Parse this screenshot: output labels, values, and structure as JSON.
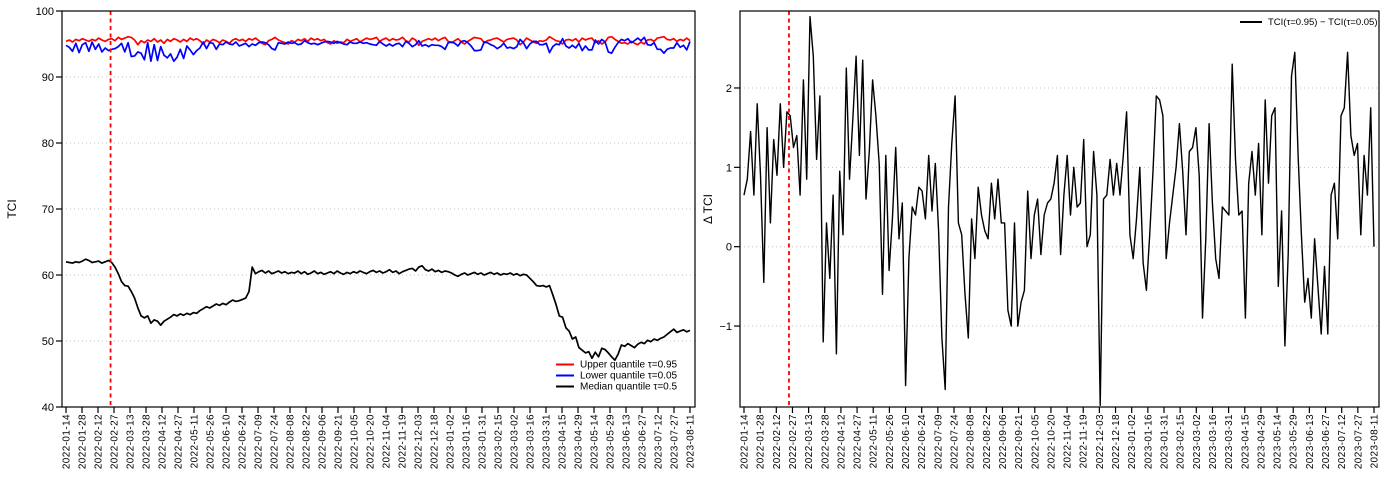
{
  "figure": {
    "background": "#ffffff",
    "event_line_color": "#ff0000"
  },
  "chart_data": [
    {
      "type": "line",
      "name": "tci-quantile-levels",
      "ylabel": "TCI",
      "ylim": [
        40,
        100
      ],
      "yticks": [
        40,
        50,
        60,
        70,
        80,
        90,
        100
      ],
      "grid": "dotted-horizontal",
      "x_tick_labels": [
        "2022-01-14",
        "2022-01-28",
        "2022-02-12",
        "2022-02-27",
        "2022-03-13",
        "2022-03-28",
        "2022-04-12",
        "2022-04-27",
        "2022-05-11",
        "2022-05-26",
        "2022-06-10",
        "2022-06-24",
        "2022-07-09",
        "2022-07-24",
        "2022-08-08",
        "2022-08-22",
        "2022-09-06",
        "2022-09-21",
        "2022-10-05",
        "2022-10-20",
        "2022-11-04",
        "2022-11-19",
        "2022-12-03",
        "2022-12-18",
        "2023-01-02",
        "2023-01-16",
        "2023-01-31",
        "2023-02-15",
        "2023-03-02",
        "2023-03-16",
        "2023-03-31",
        "2023-04-15",
        "2023-04-29",
        "2023-05-14",
        "2023-05-29",
        "2023-06-13",
        "2023-06-27",
        "2023-07-12",
        "2023-07-27",
        "2023-08-11"
      ],
      "event_line": {
        "x_fraction": 0.0714,
        "color": "#ff0000",
        "style": "dashed"
      },
      "legend_position": "bottom-right",
      "legend": [
        {
          "label": "Upper quantile τ=0.95",
          "color": "#ff0000"
        },
        {
          "label": "Lower quantile τ=0.05",
          "color": "#0000ff"
        },
        {
          "label": "Median quantile τ=0.5",
          "color": "#000000"
        }
      ],
      "series": [
        {
          "name": "upper-quantile",
          "color": "#ff0000",
          "width": 1.7,
          "values": [
            95.4,
            95.6,
            95.3,
            95.7,
            95.5,
            95.8,
            95.6,
            95.4,
            95.7,
            95.5,
            95.9,
            95.6,
            95.4,
            95.7,
            95.8,
            95.5,
            96.0,
            95.7,
            95.9,
            96.1,
            96.0,
            95.6,
            94.9,
            95.5,
            95.2,
            95.6,
            95.4,
            95.8,
            95.3,
            95.6,
            95.1,
            95.7,
            95.4,
            95.8,
            95.6,
            95.3,
            95.7,
            95.4,
            95.9,
            95.6,
            95.8,
            95.5,
            95.0,
            95.6,
            95.3,
            95.7,
            95.5,
            95.2,
            95.6,
            95.4,
            95.1,
            95.6,
            95.8,
            95.5,
            95.7,
            95.4,
            95.8,
            95.6,
            95.9,
            95.5,
            95.1,
            94.9,
            95.5,
            95.7,
            96.0,
            95.6,
            95.4,
            95.2,
            95.0,
            95.5,
            95.3,
            95.7,
            95.5,
            95.8,
            95.4,
            95.9,
            95.6,
            95.8,
            95.5,
            95.7,
            95.2,
            95.0,
            95.5,
            95.1,
            95.3,
            95.2,
            95.7,
            95.4,
            95.6,
            95.8,
            95.3,
            95.6,
            95.9,
            95.7,
            95.8,
            96.0,
            95.4,
            95.7,
            95.9,
            95.5,
            95.8,
            95.6,
            95.7,
            96.0,
            95.5,
            95.3,
            95.9,
            95.6,
            94.8,
            95.4,
            95.6,
            95.8,
            95.6,
            95.9,
            95.5,
            95.8,
            96.0,
            95.4,
            95.2,
            95.5,
            95.8,
            95.3,
            95.0,
            95.4,
            95.7,
            96.0,
            95.9,
            95.8,
            95.2,
            95.5,
            95.6,
            95.8,
            95.9,
            95.6,
            95.3,
            95.7,
            95.8,
            95.9,
            95.6,
            94.9,
            95.3,
            95.9,
            95.6,
            95.3,
            95.1,
            95.5,
            95.4,
            95.6,
            96.1,
            95.8,
            95.5,
            95.4,
            95.0,
            95.6,
            95.7,
            95.5,
            95.8,
            95.3,
            95.9,
            95.6,
            95.8,
            95.9,
            95.2,
            95.5,
            95.0,
            95.3,
            96.0,
            96.1,
            95.7,
            95.4,
            95.1,
            95.2,
            95.0,
            95.4,
            95.1,
            94.9,
            95.3,
            95.0,
            95.6,
            95.7,
            95.4,
            95.9,
            96.0,
            96.1,
            95.7,
            95.6,
            95.8,
            95.4,
            95.7,
            95.5,
            95.9,
            95.5
          ]
        },
        {
          "name": "lower-quantile",
          "color": "#0000ff",
          "width": 1.7,
          "values": [
            94.8,
            94.5,
            93.9,
            95.1,
            93.7,
            94.9,
            95.2,
            93.9,
            95.3,
            94.2,
            95.0,
            93.8,
            94.4,
            94.0,
            94.2,
            94.3,
            94.6,
            95.1,
            93.8,
            95.2,
            93.1,
            93.2,
            93.8,
            93.6,
            92.6,
            95.2,
            92.4,
            94.9,
            92.5,
            94.6,
            93.3,
            92.9,
            93.5,
            92.4,
            93.0,
            94.2,
            92.8,
            94.7,
            94.1,
            93.4,
            94.0,
            94.4,
            95.3,
            94.3,
            95.2,
            95.1,
            94.2,
            95.0,
            94.9,
            95.3,
            95.0,
            94.9,
            95.3,
            94.7,
            94.9,
            95.1,
            94.6,
            95.0,
            94.8,
            95.2,
            95.3,
            95.2,
            94.9,
            94.3,
            94.1,
            95.2,
            95.1,
            95.0,
            95.3,
            95.1,
            95.2,
            94.9,
            95.0,
            95.5,
            95.2,
            95.0,
            95.1,
            94.9,
            95.1,
            95.3,
            95.4,
            95.3,
            95.1,
            95.4,
            95.2,
            95.0,
            94.9,
            95.3,
            95.1,
            95.1,
            95.3,
            95.1,
            95.2,
            95.0,
            94.9,
            94.8,
            95.4,
            95.0,
            94.7,
            95.0,
            94.7,
            95.0,
            95.1,
            94.6,
            95.4,
            95.1,
            94.6,
            94.9,
            95.5,
            94.7,
            94.9,
            94.6,
            94.9,
            94.8,
            94.8,
            94.6,
            94.2,
            95.2,
            95.3,
            95.1,
            94.7,
            95.4,
            95.5,
            95.2,
            94.7,
            94.0,
            94.0,
            94.1,
            95.3,
            95.2,
            94.9,
            94.7,
            94.3,
            94.6,
            95.1,
            94.4,
            94.5,
            94.3,
            94.6,
            95.7,
            95.2,
            94.3,
            95.0,
            95.4,
            95.4,
            94.9,
            94.9,
            95.1,
            93.7,
            94.6,
            95.0,
            94.9,
            95.8,
            94.7,
            94.4,
            94.8,
            94.4,
            95.1,
            94.0,
            94.7,
            94.1,
            94.1,
            95.6,
            95.0,
            95.7,
            95.3,
            93.8,
            93.6,
            94.5,
            95.2,
            95.7,
            95.5,
            95.8,
            95.2,
            95.5,
            95.9,
            95.5,
            96.0,
            94.9,
            94.8,
            95.2,
            94.2,
            94.2,
            93.6,
            94.2,
            94.4,
            94.4,
            95.2,
            94.5,
            94.8,
            94.1,
            95.4
          ]
        },
        {
          "name": "median-quantile",
          "color": "#000000",
          "width": 1.7,
          "values": [
            62.0,
            61.9,
            61.8,
            62.0,
            61.9,
            62.1,
            62.4,
            62.2,
            61.9,
            62.0,
            62.1,
            61.8,
            62.0,
            62.2,
            61.9,
            61.2,
            60.2,
            59.0,
            58.4,
            58.3,
            57.5,
            56.5,
            55.0,
            53.8,
            53.5,
            53.8,
            52.7,
            53.2,
            53.0,
            52.4,
            53.0,
            53.3,
            53.6,
            54.0,
            53.8,
            54.1,
            53.9,
            54.2,
            54.0,
            54.3,
            54.2,
            54.6,
            54.9,
            55.2,
            55.0,
            55.3,
            55.6,
            55.4,
            55.7,
            55.5,
            55.9,
            56.2,
            56.0,
            56.1,
            56.3,
            56.5,
            57.5,
            61.2,
            60.2,
            60.5,
            60.7,
            60.3,
            60.6,
            60.2,
            60.4,
            60.6,
            60.3,
            60.5,
            60.2,
            60.4,
            60.3,
            60.6,
            60.2,
            60.5,
            60.1,
            60.3,
            60.6,
            60.2,
            60.4,
            60.1,
            60.3,
            60.5,
            60.2,
            60.6,
            60.3,
            60.1,
            60.4,
            60.2,
            60.5,
            60.3,
            60.6,
            60.4,
            60.2,
            60.5,
            60.7,
            60.4,
            60.6,
            60.3,
            60.5,
            60.8,
            60.4,
            60.6,
            60.2,
            60.5,
            60.7,
            60.9,
            61.0,
            60.6,
            61.2,
            61.4,
            60.8,
            60.6,
            60.9,
            60.5,
            60.7,
            60.4,
            60.6,
            60.5,
            60.3,
            60.0,
            59.8,
            60.1,
            60.3,
            60.0,
            60.2,
            60.4,
            60.1,
            60.3,
            60.0,
            60.2,
            60.4,
            60.1,
            60.3,
            60.0,
            60.2,
            60.1,
            60.3,
            60.0,
            60.2,
            59.9,
            60.1,
            60.0,
            59.5,
            59.0,
            58.4,
            58.3,
            58.4,
            58.2,
            58.4,
            57.0,
            55.5,
            53.8,
            53.6,
            52.0,
            51.5,
            50.3,
            50.6,
            49.0,
            48.6,
            48.2,
            48.4,
            47.4,
            48.3,
            47.6,
            48.9,
            48.7,
            48.2,
            47.6,
            47.1,
            48.0,
            49.4,
            49.2,
            49.6,
            49.3,
            49.0,
            49.5,
            49.8,
            49.6,
            50.1,
            49.9,
            50.3,
            50.1,
            50.4,
            50.6,
            51.0,
            51.4,
            51.8,
            51.3,
            51.5,
            51.7,
            51.4,
            51.6
          ]
        }
      ]
    },
    {
      "type": "line",
      "name": "tci-quantile-difference",
      "ylabel": "Δ TCI",
      "ylim": [
        -2.02,
        2.97
      ],
      "yticks": [
        -1,
        0,
        1,
        2
      ],
      "grid": "dotted-horizontal",
      "x_tick_labels": [
        "2022-01-14",
        "2022-01-28",
        "2022-02-12",
        "2022-02-27",
        "2022-03-13",
        "2022-03-28",
        "2022-04-12",
        "2022-04-27",
        "2022-05-11",
        "2022-05-26",
        "2022-06-10",
        "2022-06-24",
        "2022-07-09",
        "2022-07-24",
        "2022-08-08",
        "2022-08-22",
        "2022-09-06",
        "2022-09-21",
        "2022-10-05",
        "2022-10-20",
        "2022-11-04",
        "2022-11-19",
        "2022-12-03",
        "2022-12-18",
        "2023-01-02",
        "2023-01-16",
        "2023-01-31",
        "2023-02-15",
        "2023-03-02",
        "2023-03-16",
        "2023-03-31",
        "2023-04-15",
        "2023-04-29",
        "2023-05-14",
        "2023-05-29",
        "2023-06-13",
        "2023-06-27",
        "2023-07-12",
        "2023-07-27",
        "2023-08-11"
      ],
      "event_line": {
        "x_fraction": 0.0714,
        "color": "#ff0000",
        "style": "dashed"
      },
      "legend_position": "top-right",
      "legend": [
        {
          "label": "TCI(τ=0.95) − TCI(τ=0.05)",
          "color": "#000000"
        }
      ],
      "series": [
        {
          "name": "delta-tci",
          "color": "#000000",
          "width": 1.4,
          "values": [
            0.65,
            0.85,
            1.45,
            0.65,
            1.8,
            0.9,
            -0.45,
            1.5,
            0.3,
            1.35,
            0.9,
            1.8,
            1.0,
            1.7,
            1.65,
            1.25,
            1.4,
            0.65,
            2.1,
            0.85,
            2.9,
            2.4,
            1.1,
            1.9,
            -1.2,
            0.3,
            -0.4,
            0.65,
            -1.35,
            0.95,
            0.15,
            2.25,
            0.85,
            1.6,
            2.4,
            1.15,
            2.35,
            0.6,
            1.2,
            2.1,
            1.65,
            1.05,
            -0.6,
            1.15,
            -0.3,
            0.35,
            1.25,
            0.1,
            0.55,
            -1.75,
            -0.15,
            0.5,
            0.4,
            0.75,
            0.7,
            0.35,
            1.15,
            0.45,
            1.05,
            0.2,
            -1.15,
            -1.8,
            0.5,
            1.3,
            1.9,
            0.3,
            0.15,
            -0.6,
            -1.15,
            0.35,
            -0.15,
            0.75,
            0.4,
            0.2,
            0.1,
            0.8,
            0.35,
            0.85,
            0.3,
            0.3,
            -0.8,
            -1.0,
            0.3,
            -1.0,
            -0.7,
            -0.55,
            0.7,
            -0.15,
            0.4,
            0.6,
            -0.1,
            0.4,
            0.55,
            0.6,
            0.8,
            1.15,
            -0.1,
            0.65,
            1.15,
            0.4,
            1.0,
            0.5,
            0.55,
            1.35,
            0.0,
            0.15,
            1.2,
            0.65,
            -2.0,
            0.6,
            0.65,
            1.1,
            0.65,
            1.05,
            0.65,
            1.15,
            1.7,
            0.15,
            -0.15,
            0.35,
            1.0,
            -0.2,
            -0.55,
            0.15,
            0.95,
            1.9,
            1.85,
            1.65,
            -0.15,
            0.3,
            0.65,
            1.0,
            1.55,
            0.95,
            0.15,
            1.2,
            1.25,
            1.5,
            0.9,
            -0.9,
            0.1,
            1.55,
            0.55,
            -0.15,
            -0.4,
            0.5,
            0.45,
            0.4,
            2.3,
            1.1,
            0.4,
            0.45,
            -0.9,
            0.8,
            1.2,
            0.65,
            1.3,
            0.15,
            1.85,
            0.8,
            1.65,
            1.75,
            -0.5,
            0.45,
            -1.25,
            -0.1,
            2.15,
            2.45,
            1.15,
            0.15,
            -0.7,
            -0.4,
            -0.9,
            0.1,
            -0.5,
            -1.1,
            -0.25,
            -1.1,
            0.65,
            0.8,
            0.1,
            1.65,
            1.75,
            2.45,
            1.4,
            1.15,
            1.3,
            0.15,
            1.15,
            0.65,
            1.75,
            0.0
          ]
        }
      ]
    }
  ]
}
